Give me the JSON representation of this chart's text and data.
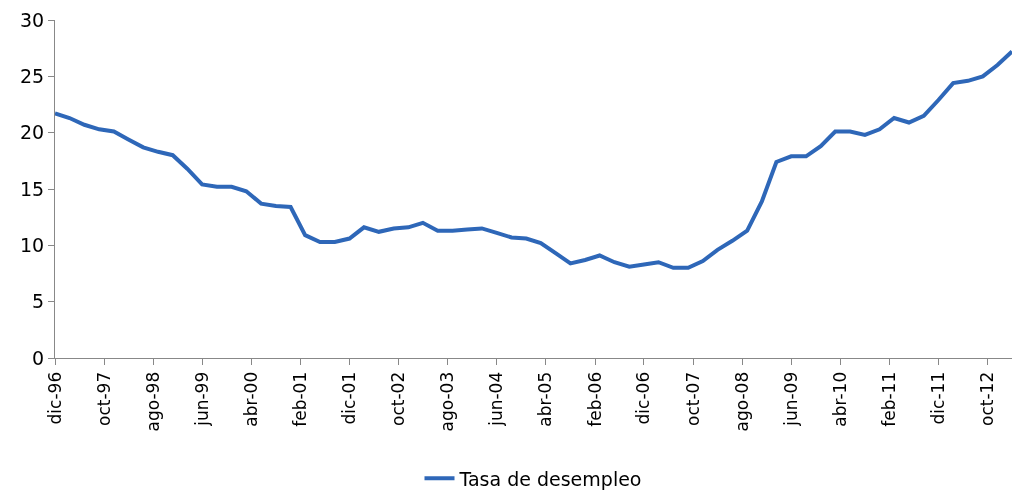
{
  "chart_data": {
    "type": "line",
    "x": [
      "1996-12",
      "1997-03",
      "1997-06",
      "1997-09",
      "1997-12",
      "1998-03",
      "1998-06",
      "1998-09",
      "1998-12",
      "1999-03",
      "1999-06",
      "1999-09",
      "1999-12",
      "2000-03",
      "2000-06",
      "2000-09",
      "2000-12",
      "2001-03",
      "2001-06",
      "2001-09",
      "2001-12",
      "2002-03",
      "2002-06",
      "2002-09",
      "2002-12",
      "2003-03",
      "2003-06",
      "2003-09",
      "2003-12",
      "2004-03",
      "2004-06",
      "2004-09",
      "2004-12",
      "2005-03",
      "2005-06",
      "2005-09",
      "2005-12",
      "2006-03",
      "2006-06",
      "2006-09",
      "2006-12",
      "2007-03",
      "2007-06",
      "2007-09",
      "2007-12",
      "2008-03",
      "2008-06",
      "2008-09",
      "2008-12",
      "2009-03",
      "2009-06",
      "2009-09",
      "2009-12",
      "2010-03",
      "2010-06",
      "2010-09",
      "2010-12",
      "2011-03",
      "2011-06",
      "2011-09",
      "2011-12",
      "2012-03",
      "2012-06",
      "2012-09",
      "2012-12",
      "2013-03"
    ],
    "series": [
      {
        "name": "Tasa de desempleo",
        "color": "#2e67b8",
        "values": [
          21.7,
          21.3,
          20.7,
          20.3,
          20.1,
          19.4,
          18.7,
          18.3,
          18.0,
          16.8,
          15.4,
          15.2,
          15.2,
          14.8,
          13.7,
          13.5,
          13.4,
          10.9,
          10.3,
          10.3,
          10.6,
          11.6,
          11.2,
          11.5,
          11.6,
          12.0,
          11.3,
          11.3,
          11.4,
          11.5,
          11.1,
          10.7,
          10.6,
          10.2,
          9.3,
          8.4,
          8.7,
          9.1,
          8.5,
          8.1,
          8.3,
          8.5,
          8.0,
          8.0,
          8.6,
          9.6,
          10.4,
          11.3,
          13.9,
          17.4,
          17.9,
          17.9,
          18.8,
          20.1,
          20.1,
          19.8,
          20.3,
          21.3,
          20.9,
          21.5,
          22.9,
          24.4,
          24.6,
          25.0,
          26.0,
          27.2
        ]
      }
    ],
    "xlim": [
      "1996-12",
      "2013-03"
    ],
    "xticks": [
      {
        "value": "1996-12",
        "label": "dic-96"
      },
      {
        "value": "1997-10",
        "label": "oct-97"
      },
      {
        "value": "1998-08",
        "label": "ago-98"
      },
      {
        "value": "1999-06",
        "label": "jun-99"
      },
      {
        "value": "2000-04",
        "label": "abr-00"
      },
      {
        "value": "2001-02",
        "label": "feb-01"
      },
      {
        "value": "2001-12",
        "label": "dic-01"
      },
      {
        "value": "2002-10",
        "label": "oct-02"
      },
      {
        "value": "2003-08",
        "label": "ago-03"
      },
      {
        "value": "2004-06",
        "label": "jun-04"
      },
      {
        "value": "2005-04",
        "label": "abr-05"
      },
      {
        "value": "2006-02",
        "label": "feb-06"
      },
      {
        "value": "2006-12",
        "label": "dic-06"
      },
      {
        "value": "2007-10",
        "label": "oct-07"
      },
      {
        "value": "2008-08",
        "label": "ago-08"
      },
      {
        "value": "2009-06",
        "label": "jun-09"
      },
      {
        "value": "2010-04",
        "label": "abr-10"
      },
      {
        "value": "2011-02",
        "label": "feb-11"
      },
      {
        "value": "2011-12",
        "label": "dic-11"
      },
      {
        "value": "2012-10",
        "label": "oct-12"
      }
    ],
    "ylim": [
      0,
      30
    ],
    "yticks": [
      0,
      5,
      10,
      15,
      20,
      25,
      30
    ],
    "legend": "bottom",
    "marker": "none",
    "line_style": "solid"
  }
}
